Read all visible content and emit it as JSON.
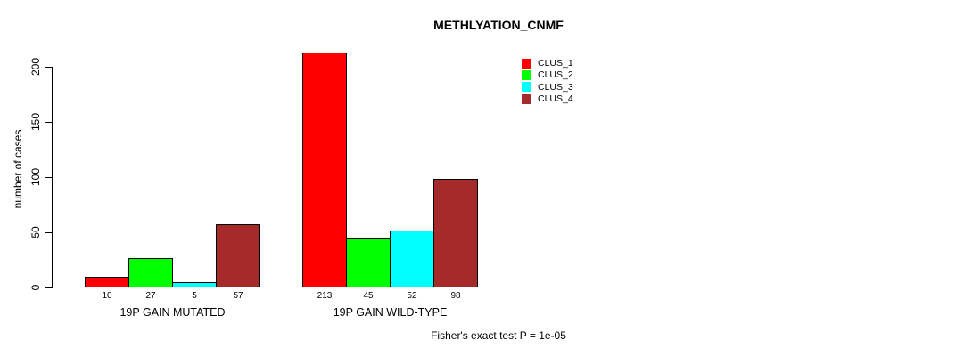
{
  "title": "METHLYATION_CNMF",
  "chart_data": {
    "type": "bar",
    "categories": [
      "19P GAIN MUTATED",
      "19P GAIN WILD-TYPE"
    ],
    "series": [
      {
        "name": "CLUS_1",
        "color": "#FF0000",
        "values": [
          10,
          213
        ]
      },
      {
        "name": "CLUS_2",
        "color": "#00FF00",
        "values": [
          27,
          45
        ]
      },
      {
        "name": "CLUS_3",
        "color": "#00FFFF",
        "values": [
          5,
          52
        ]
      },
      {
        "name": "CLUS_4",
        "color": "#A52A2A",
        "values": [
          57,
          98
        ]
      }
    ],
    "ylabel": "number of cases",
    "yticks": [
      0,
      50,
      100,
      150,
      200
    ],
    "ylim": [
      0,
      213
    ],
    "grid": false,
    "bar_value_labels": [
      [
        "10",
        "27",
        "5",
        "57"
      ],
      [
        "213",
        "45",
        "52",
        "98"
      ]
    ],
    "legend_position": "top-right",
    "legend_entries": [
      "CLUS_1",
      "CLUS_2",
      "CLUS_3",
      "CLUS_4"
    ],
    "annotation": "Fisher's exact test P = 1e-05"
  }
}
